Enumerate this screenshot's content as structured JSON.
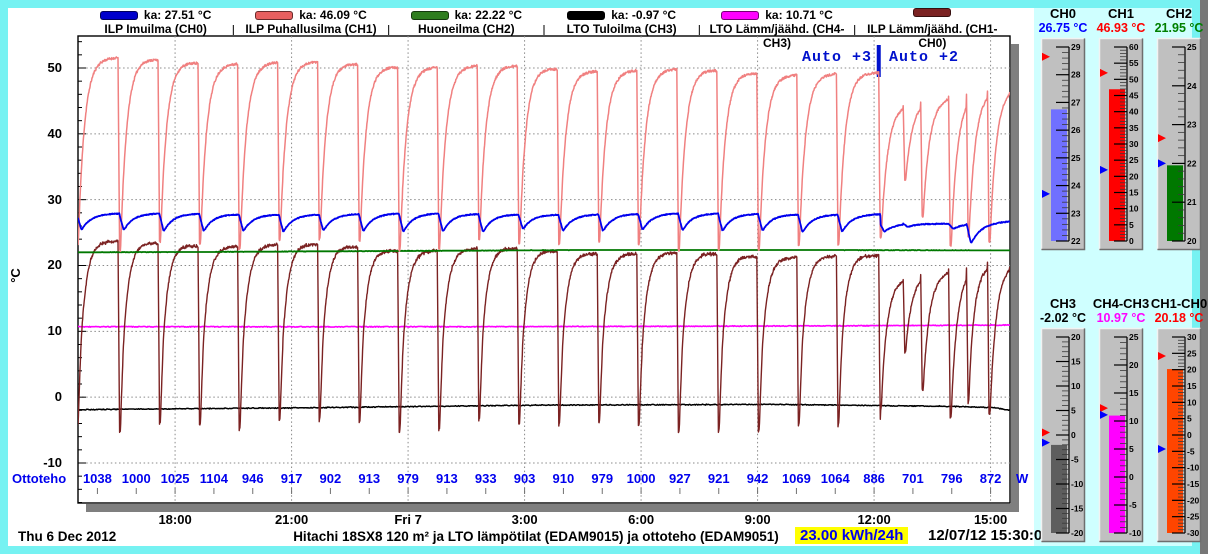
{
  "legend": {
    "items": [
      {
        "swatch_color": "#0000CC",
        "ka": "ka: 27.51 °C",
        "label": "ILP Imuilma (CH0)"
      },
      {
        "swatch_color": "#E86060",
        "ka": "ka: 46.09 °C",
        "label": "ILP Puhallusilma (CH1)"
      },
      {
        "swatch_color": "#2E7D1E",
        "ka": "ka: 22.22 °C",
        "label": "Huoneilma (CH2)"
      },
      {
        "swatch_color": "#000000",
        "ka": "ka: -0.97 °C",
        "label": "LTO Tuloilma (CH3)"
      },
      {
        "swatch_color": "#FF00FF",
        "ka": "ka: 10.71 °C",
        "label": "LTO Lämm/jäähd. (CH4-CH3)"
      },
      {
        "swatch_color": "#7B2222",
        "ka": "",
        "label": "ILP Lämm/jäähd. (CH1-CH0)"
      }
    ]
  },
  "annotation": {
    "left": "Auto +3",
    "right": "Auto +2",
    "marker_hour": 20.62
  },
  "axes": {
    "y_label": "°C",
    "y_ticks": [
      50,
      40,
      30,
      20,
      10,
      0,
      -10
    ],
    "x_ticks": [
      {
        "label": "18:00",
        "h": 2.5
      },
      {
        "label": "21:00",
        "h": 5.5
      },
      {
        "label": "Fri 7",
        "h": 8.5
      },
      {
        "label": "3:00",
        "h": 11.5
      },
      {
        "label": "6:00",
        "h": 14.5
      },
      {
        "label": "9:00",
        "h": 17.5
      },
      {
        "label": "12:00",
        "h": 20.5
      },
      {
        "label": "15:00",
        "h": 23.5
      }
    ]
  },
  "ottoteho": {
    "label": "Ottoteho",
    "unit": "W",
    "values": [
      1038,
      1000,
      1025,
      1104,
      946,
      917,
      902,
      913,
      979,
      913,
      933,
      903,
      910,
      979,
      1000,
      927,
      921,
      942,
      1069,
      1064,
      886,
      701,
      796,
      872
    ]
  },
  "footer": {
    "date_left": "Thu 6 Dec 2012",
    "title": "Hitachi 18SX8 120 m² ja LTO lämpötilat (EDAM9015) ja ottoteho (EDAM9051)",
    "energy": "23.00 kWh/24h",
    "timestamp": "12/07/12 15:30:01"
  },
  "gauges": [
    {
      "title": "CH0",
      "value": "26.75 °C",
      "value_color": "#0000FF",
      "bar_color": "#7070FF",
      "min": 22,
      "max": 29,
      "step": 1,
      "val": 26.75,
      "red_marker": 28.65,
      "blue_marker": 23.7
    },
    {
      "title": "CH1",
      "value": "46.93 °C",
      "value_color": "#FF0000",
      "bar_color": "#FF0000",
      "min": 0,
      "max": 60,
      "step": 5,
      "val": 46.93,
      "red_marker": 52,
      "blue_marker": 22
    },
    {
      "title": "CH2",
      "value": "21.95 °C",
      "value_color": "#008000",
      "bar_color": "#007800",
      "min": 20,
      "max": 25,
      "step": 1,
      "val": 21.95,
      "red_marker": 22.65,
      "blue_marker": 22.0
    },
    {
      "title": "CH3",
      "value": "-2.02 °C",
      "value_color": "#000000",
      "bar_color": "#5E5E5E",
      "min": -20,
      "max": 20,
      "step": 5,
      "val": -2.02,
      "red_marker": 0.5,
      "blue_marker": -1.55
    },
    {
      "title": "CH4-CH3",
      "value": "10.97 °C",
      "value_color": "#FF00FF",
      "bar_color": "#FF00FF",
      "min": -10,
      "max": 25,
      "step": 5,
      "val": 10.97,
      "red_marker": 12.3,
      "blue_marker": 11.1
    },
    {
      "title": "CH1-CH0",
      "value": "20.18 °C",
      "value_color": "#FF0000",
      "bar_color": "#FF4500",
      "min": -30,
      "max": 30,
      "step": 5,
      "val": 20.18,
      "red_marker": 24.2,
      "blue_marker": -4.3
    }
  ],
  "chart_data": {
    "type": "line",
    "title": "Hitachi 18SX8 120 m² ja LTO lämpötilat (EDAM9015) ja ottoteho (EDAM9051)",
    "x_axis": {
      "start": "Thu 6 Dec 2012 ~15:30",
      "end": "Fri 7 Dec 2012 ~15:30",
      "hours_span": 24,
      "tick_labels": [
        "18:00",
        "21:00",
        "Fri 7",
        "3:00",
        "6:00",
        "9:00",
        "12:00",
        "15:00"
      ],
      "tick_hours": [
        2.5,
        5.5,
        8.5,
        11.5,
        14.5,
        17.5,
        20.5,
        23.5
      ]
    },
    "y_axis": {
      "label": "°C",
      "ticks": [
        -10,
        0,
        10,
        20,
        30,
        40,
        50
      ],
      "ylim": [
        -16,
        55
      ],
      "grid": "dotted"
    },
    "legend_position": "top",
    "series": [
      {
        "name": "ILP Imuilma (CH0)",
        "color": "#0000EE",
        "ka_avg": 27.51,
        "current": 26.75,
        "kind": "cyclic",
        "base_start": 27.85,
        "base_post": 26.35,
        "dip_depth": 2.45,
        "tau": 0.24,
        "noise": 0.06
      },
      {
        "name": "ILP Puhallusilma (CH1)",
        "color": "#F08080",
        "ka_avg": 46.09,
        "current": 46.93,
        "kind": "cyclic",
        "plateau_start": 51.4,
        "plateau_end": 49.0,
        "plateau_post_start": 43.8,
        "plateau_post_end": 47.1,
        "dip_min": 22.2,
        "tau": 0.16,
        "noise": 0.18
      },
      {
        "name": "Huoneilma (CH2)",
        "color": "#007800",
        "ka_avg": 22.22,
        "current": 21.95,
        "kind": "keyframes",
        "keys": [
          [
            0,
            22.0
          ],
          [
            3,
            22.05
          ],
          [
            8,
            22.2
          ],
          [
            13,
            22.35
          ],
          [
            19,
            22.35
          ],
          [
            24,
            22.3
          ]
        ],
        "noise": 0.02
      },
      {
        "name": "LTO Tuloilma (CH3)",
        "color": "#000000",
        "ka_avg": -0.97,
        "current": -2.02,
        "kind": "keyframes",
        "keys": [
          [
            0,
            -1.9
          ],
          [
            6,
            -1.6
          ],
          [
            12,
            -1.2
          ],
          [
            18,
            -1.1
          ],
          [
            22.5,
            -1.4
          ],
          [
            23.6,
            -1.6
          ],
          [
            24,
            -2.0
          ]
        ],
        "noise": 0.06
      },
      {
        "name": "LTO Lämm/jäähd. (CH4-CH3)",
        "color": "#FF00FF",
        "ka_avg": 10.71,
        "current": 10.97,
        "kind": "keyframes",
        "keys": [
          [
            0,
            10.7
          ],
          [
            10,
            10.7
          ],
          [
            18,
            10.8
          ],
          [
            24,
            10.95
          ]
        ],
        "noise": 0.05
      },
      {
        "name": "ILP Lämm/jäähd. (CH1-CH0)",
        "color": "#7B2222",
        "current": 20.18,
        "kind": "difference",
        "minuend": 1,
        "subtrahend": 0
      }
    ],
    "defrost_events_h": [
      -0.06,
      1.03,
      2.06,
      3.09,
      4.11,
      5.14,
      6.17,
      7.2,
      8.23,
      9.25,
      10.28,
      11.31,
      12.34,
      13.37,
      14.39,
      15.42,
      16.45,
      17.48,
      18.51,
      19.53,
      20.62
    ],
    "post_change": {
      "marker_h": 20.62,
      "label_left": "Auto +3",
      "label_right": "Auto +2",
      "dips_ch1": [
        [
          21.25,
          33
        ],
        [
          21.7,
          27.5
        ],
        [
          22.42,
          23
        ],
        [
          22.88,
          24.5
        ],
        [
          23.42,
          23.5
        ]
      ],
      "dips_ch0": [
        [
          21.25,
          25.9
        ],
        [
          22.42,
          25.6
        ],
        [
          22.88,
          23.5
        ]
      ]
    },
    "power_readings_w": [
      1038,
      1000,
      1025,
      1104,
      946,
      917,
      902,
      913,
      979,
      913,
      933,
      903,
      910,
      979,
      1000,
      927,
      921,
      942,
      1069,
      1064,
      886,
      701,
      796,
      872
    ],
    "power_unit": "W"
  }
}
